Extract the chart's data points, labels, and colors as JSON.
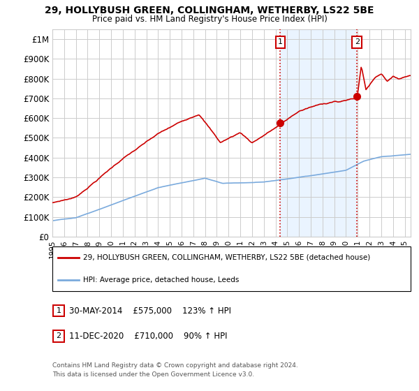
{
  "title": "29, HOLLYBUSH GREEN, COLLINGHAM, WETHERBY, LS22 5BE",
  "subtitle": "Price paid vs. HM Land Registry's House Price Index (HPI)",
  "legend_line1": "29, HOLLYBUSH GREEN, COLLINGHAM, WETHERBY, LS22 5BE (detached house)",
  "legend_line2": "HPI: Average price, detached house, Leeds",
  "annotation1_label": "1",
  "annotation1_date": "30-MAY-2014",
  "annotation1_price": "£575,000",
  "annotation1_hpi": "123% ↑ HPI",
  "annotation1_year": 2014.41,
  "annotation1_value": 575000,
  "annotation2_label": "2",
  "annotation2_date": "11-DEC-2020",
  "annotation2_price": "£710,000",
  "annotation2_hpi": "90% ↑ HPI",
  "annotation2_year": 2020.94,
  "annotation2_value": 710000,
  "footer_line1": "Contains HM Land Registry data © Crown copyright and database right 2024.",
  "footer_line2": "This data is licensed under the Open Government Licence v3.0.",
  "red_color": "#cc0000",
  "blue_color": "#7aaadd",
  "shade_color": "#ddeeff",
  "annotation_box_color": "#cc0000",
  "background_color": "#ffffff",
  "grid_color": "#cccccc",
  "ylim_max": 1050000,
  "xlim_start": 1995.0,
  "xlim_end": 2025.5
}
